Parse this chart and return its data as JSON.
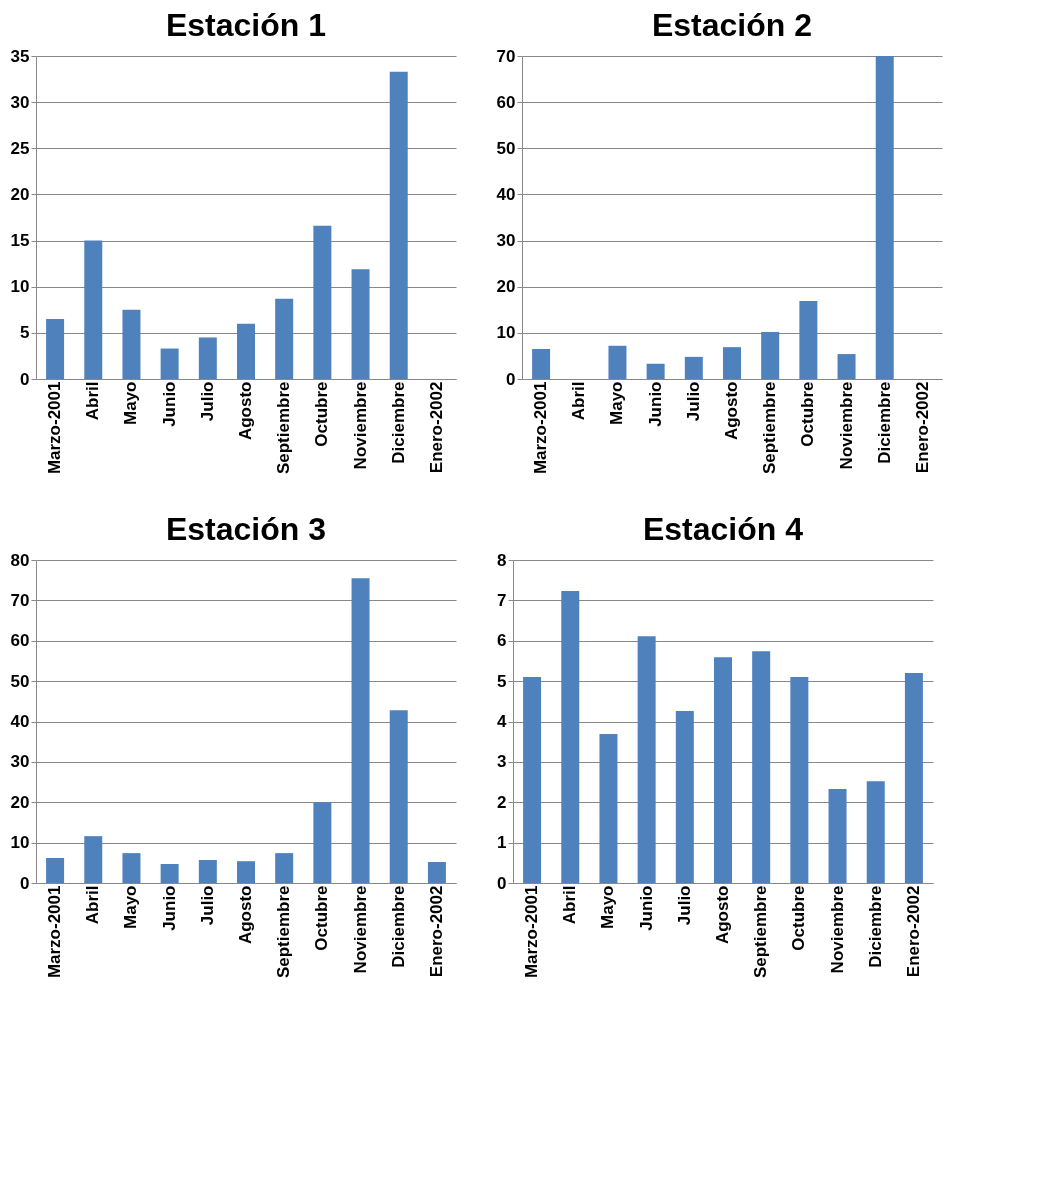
{
  "chart_data": [
    {
      "type": "bar",
      "title": "Estación 1",
      "categories": [
        "Marzo-2001",
        "Abril",
        "Mayo",
        "Junio",
        "Julio",
        "Agosto",
        "Septiembre",
        "Octubre",
        "Noviembre",
        "Diciembre",
        "Enero-2002"
      ],
      "values": [
        6.5,
        15,
        7.5,
        3.3,
        4.5,
        6,
        8.7,
        16.6,
        11.9,
        33.3,
        null
      ],
      "color": "#4f81bd",
      "ylim": [
        0,
        35
      ],
      "yticks": [
        0,
        5,
        10,
        15,
        20,
        25,
        30,
        35
      ],
      "grid": "y"
    },
    {
      "type": "bar",
      "title": "Estación 2",
      "categories": [
        "Marzo-2001",
        "Abril",
        "Mayo",
        "Junio",
        "Julio",
        "Agosto",
        "Septiembre",
        "Octubre",
        "Noviembre",
        "Diciembre",
        "Enero-2002"
      ],
      "values": [
        6.5,
        null,
        7.2,
        3.3,
        4.8,
        6.9,
        10.2,
        16.9,
        5.4,
        70,
        null
      ],
      "color": "#4f81bd",
      "ylim": [
        0,
        70
      ],
      "yticks": [
        0,
        10,
        20,
        30,
        40,
        50,
        60,
        70
      ],
      "grid": "y"
    },
    {
      "type": "bar",
      "title": "Estación 3",
      "categories": [
        "Marzo-2001",
        "Abril",
        "Mayo",
        "Junio",
        "Julio",
        "Agosto",
        "Septiembre",
        "Octubre",
        "Noviembre",
        "Diciembre",
        "Enero-2002"
      ],
      "values": [
        6.2,
        11.6,
        7.4,
        4.7,
        5.7,
        5.4,
        7.4,
        20,
        75.5,
        42.8,
        5.2
      ],
      "color": "#4f81bd",
      "ylim": [
        0,
        80
      ],
      "yticks": [
        0,
        10,
        20,
        30,
        40,
        50,
        60,
        70,
        80
      ],
      "grid": "y"
    },
    {
      "type": "bar",
      "title": "Estación 4",
      "categories": [
        "Marzo-2001",
        "Abril",
        "Mayo",
        "Junio",
        "Julio",
        "Agosto",
        "Septiembre",
        "Octubre",
        "Noviembre",
        "Diciembre",
        "Enero-2002"
      ],
      "values": [
        5.1,
        7.23,
        3.69,
        6.11,
        4.26,
        5.59,
        5.74,
        5.1,
        2.33,
        2.52,
        5.2
      ],
      "color": "#4f81bd",
      "ylim": [
        0,
        8
      ],
      "yticks": [
        0,
        1,
        2,
        3,
        4,
        5,
        6,
        7,
        8
      ],
      "grid": "y"
    }
  ]
}
